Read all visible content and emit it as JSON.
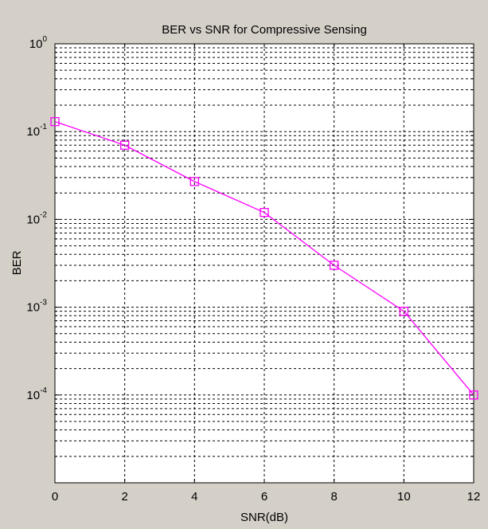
{
  "chart_data": {
    "type": "line",
    "title": "BER vs SNR for Compressive Sensing",
    "xlabel": "SNR(dB)",
    "ylabel": "BER",
    "xlim": [
      0,
      12
    ],
    "ylim": [
      1e-05,
      1
    ],
    "yscale": "log",
    "grid": true,
    "x_ticks": [
      "0",
      "2",
      "4",
      "6",
      "8",
      "10",
      "12"
    ],
    "y_ticks": [
      {
        "base": "10",
        "exp": "0"
      },
      {
        "base": "10",
        "exp": "-1"
      },
      {
        "base": "10",
        "exp": "-2"
      },
      {
        "base": "10",
        "exp": "-3"
      },
      {
        "base": "10",
        "exp": "-4"
      }
    ],
    "series": [
      {
        "color": "#ff00ff",
        "marker": "square",
        "x": [
          0,
          2,
          4,
          6,
          8,
          10,
          12
        ],
        "values": [
          0.13,
          0.07,
          0.027,
          0.012,
          0.003,
          0.0009,
          0.0001
        ]
      }
    ]
  }
}
